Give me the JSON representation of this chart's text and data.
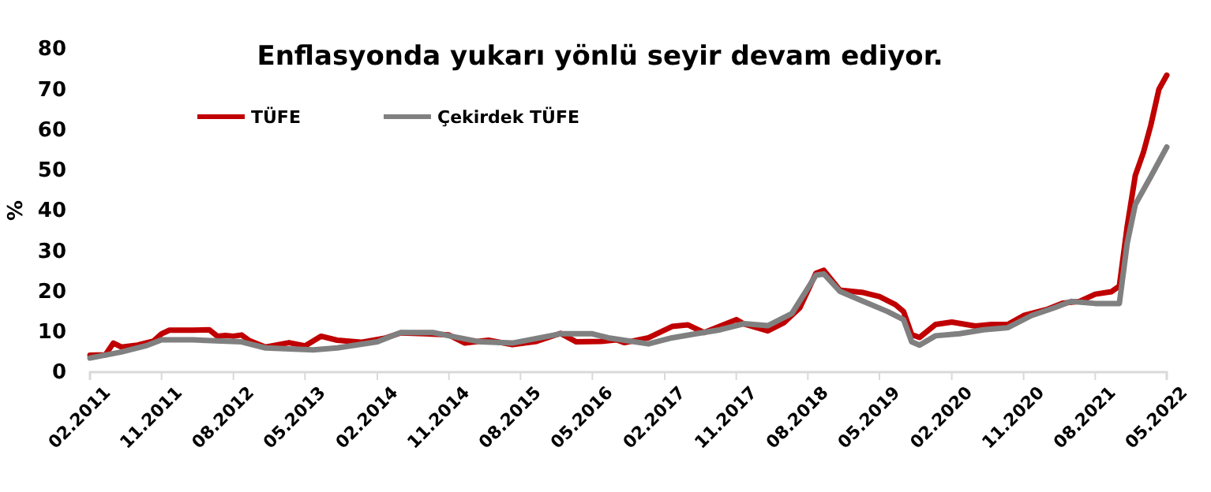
{
  "chart_data": {
    "type": "line",
    "title": "Enflasyonda yukarı yönlü seyir devam ediyor.",
    "ylabel": "%",
    "xlim": [
      "2011-02",
      "2022-05"
    ],
    "xticks": [
      {
        "value": "2011-02",
        "label": "02.2011"
      },
      {
        "value": "2011-11",
        "label": "11.2011"
      },
      {
        "value": "2012-08",
        "label": "08.2012"
      },
      {
        "value": "2013-05",
        "label": "05.2013"
      },
      {
        "value": "2014-02",
        "label": "02.2014"
      },
      {
        "value": "2014-11",
        "label": "11.2014"
      },
      {
        "value": "2015-08",
        "label": "08.2015"
      },
      {
        "value": "2016-05",
        "label": "05.2016"
      },
      {
        "value": "2017-02",
        "label": "02.2017"
      },
      {
        "value": "2017-11",
        "label": "11.2017"
      },
      {
        "value": "2018-08",
        "label": "08.2018"
      },
      {
        "value": "2019-05",
        "label": "05.2019"
      },
      {
        "value": "2020-02",
        "label": "02.2020"
      },
      {
        "value": "2020-11",
        "label": "11.2020"
      },
      {
        "value": "2021-08",
        "label": "08.2021"
      },
      {
        "value": "2022-05",
        "label": "05.2022"
      }
    ],
    "ylim": [
      0,
      80
    ],
    "yticks": [
      0,
      10,
      20,
      30,
      40,
      50,
      60,
      70,
      80
    ],
    "grid": false,
    "legend": "top left",
    "marker": "none",
    "line_style": "solid",
    "series": [
      {
        "name": "TÜFE",
        "color": "#c00000",
        "x": [
          "2011-02",
          "2011-04",
          "2011-05",
          "2011-06",
          "2011-08",
          "2011-10",
          "2011-11",
          "2011-12",
          "2012-03",
          "2012-05",
          "2012-06",
          "2012-07",
          "2012-08",
          "2012-09",
          "2012-10",
          "2012-12",
          "2013-03",
          "2013-05",
          "2013-07",
          "2013-09",
          "2013-12",
          "2014-03",
          "2014-05",
          "2014-08",
          "2014-11",
          "2015-01",
          "2015-04",
          "2015-07",
          "2015-10",
          "2016-01",
          "2016-03",
          "2016-06",
          "2016-08",
          "2016-09",
          "2016-12",
          "2017-03",
          "2017-05",
          "2017-07",
          "2017-11",
          "2017-12",
          "2018-03",
          "2018-05",
          "2018-07",
          "2018-09",
          "2018-10",
          "2018-12",
          "2019-03",
          "2019-05",
          "2019-07",
          "2019-08",
          "2019-09",
          "2019-10",
          "2019-12",
          "2020-02",
          "2020-05",
          "2020-07",
          "2020-09",
          "2020-11",
          "2021-02",
          "2021-04",
          "2021-06",
          "2021-08",
          "2021-10",
          "2021-11",
          "2021-12",
          "2022-01",
          "2022-02",
          "2022-03",
          "2022-04",
          "2022-05"
        ],
        "values": [
          4.2,
          4.3,
          7.2,
          6.2,
          6.7,
          7.7,
          9.5,
          10.4,
          10.4,
          10.5,
          8.9,
          9.1,
          8.9,
          9.2,
          7.8,
          6.2,
          7.3,
          6.5,
          8.9,
          7.9,
          7.4,
          8.4,
          9.7,
          9.5,
          9.2,
          7.2,
          7.9,
          6.8,
          7.6,
          9.6,
          7.5,
          7.6,
          8.0,
          7.3,
          8.5,
          11.3,
          11.7,
          9.8,
          13.0,
          11.9,
          10.2,
          12.2,
          15.9,
          24.5,
          25.2,
          20.3,
          19.7,
          18.7,
          16.7,
          15.0,
          9.3,
          8.6,
          11.8,
          12.4,
          11.4,
          11.8,
          11.8,
          14.0,
          15.6,
          17.1,
          17.5,
          19.3,
          19.9,
          21.3,
          36.1,
          48.7,
          54.4,
          61.1,
          70.0,
          73.5
        ]
      },
      {
        "name": "Çekirdek TÜFE",
        "color": "#808080",
        "x": [
          "2011-02",
          "2011-06",
          "2011-09",
          "2011-11",
          "2012-03",
          "2012-09",
          "2012-12",
          "2013-06",
          "2013-09",
          "2014-02",
          "2014-05",
          "2014-09",
          "2014-11",
          "2015-03",
          "2015-07",
          "2016-01",
          "2016-05",
          "2016-07",
          "2016-12",
          "2017-03",
          "2017-06",
          "2017-09",
          "2017-12",
          "2018-03",
          "2018-06",
          "2018-09",
          "2018-10",
          "2018-12",
          "2019-03",
          "2019-06",
          "2019-08",
          "2019-09",
          "2019-10",
          "2019-12",
          "2020-03",
          "2020-06",
          "2020-09",
          "2020-12",
          "2021-03",
          "2021-05",
          "2021-08",
          "2021-11",
          "2021-12",
          "2022-01",
          "2022-03",
          "2022-05"
        ],
        "values": [
          3.5,
          5.0,
          6.5,
          8.0,
          8.0,
          7.5,
          6.0,
          5.5,
          6.0,
          7.5,
          9.8,
          9.8,
          9.0,
          7.5,
          7.2,
          9.5,
          9.5,
          8.5,
          7.0,
          8.5,
          9.5,
          10.5,
          12.0,
          11.5,
          14.5,
          24.0,
          24.3,
          20.0,
          17.5,
          15.0,
          13.0,
          7.5,
          6.7,
          9.0,
          9.5,
          10.5,
          11.0,
          14.0,
          16.0,
          17.5,
          17.0,
          17.0,
          31.9,
          41.5,
          48.4,
          55.7
        ]
      }
    ]
  }
}
